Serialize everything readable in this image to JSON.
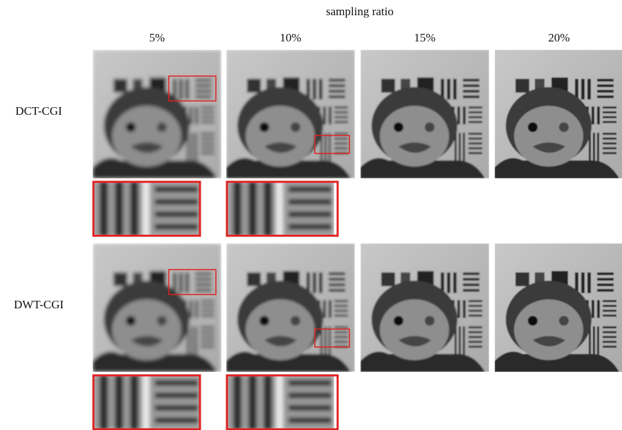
{
  "header": {
    "title": "sampling ratio"
  },
  "columns": [
    "5%",
    "10%",
    "15%",
    "20%"
  ],
  "rows": [
    {
      "label": "DCT-CGI"
    },
    {
      "label": "DWT-CGI"
    }
  ]
}
